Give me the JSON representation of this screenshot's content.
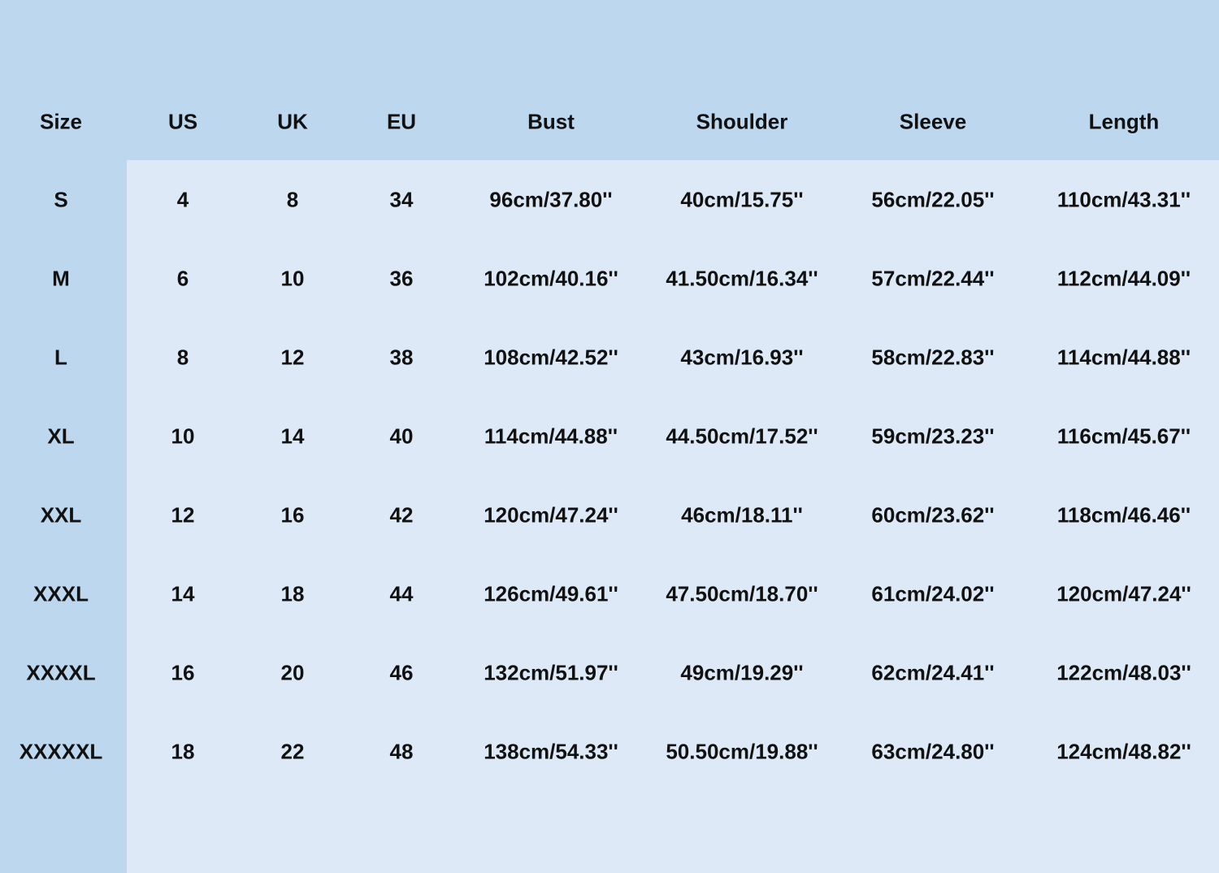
{
  "table": {
    "headers": [
      "Size",
      "US",
      "UK",
      "EU",
      "Bust",
      "Shoulder",
      "Sleeve",
      "Length"
    ],
    "rows": [
      [
        "S",
        "4",
        "8",
        "34",
        "96cm/37.80''",
        "40cm/15.75''",
        "56cm/22.05''",
        "110cm/43.31''"
      ],
      [
        "M",
        "6",
        "10",
        "36",
        "102cm/40.16''",
        "41.50cm/16.34''",
        "57cm/22.44''",
        "112cm/44.09''"
      ],
      [
        "L",
        "8",
        "12",
        "38",
        "108cm/42.52''",
        "43cm/16.93''",
        "58cm/22.83''",
        "114cm/44.88''"
      ],
      [
        "XL",
        "10",
        "14",
        "40",
        "114cm/44.88''",
        "44.50cm/17.52''",
        "59cm/23.23''",
        "116cm/45.67''"
      ],
      [
        "XXL",
        "12",
        "16",
        "42",
        "120cm/47.24''",
        "46cm/18.11''",
        "60cm/23.62''",
        "118cm/46.46''"
      ],
      [
        "XXXL",
        "14",
        "18",
        "44",
        "126cm/49.61''",
        "47.50cm/18.70''",
        "61cm/24.02''",
        "120cm/47.24''"
      ],
      [
        "XXXXL",
        "16",
        "20",
        "46",
        "132cm/51.97''",
        "49cm/19.29''",
        "62cm/24.41''",
        "122cm/48.03''"
      ],
      [
        "XXXXXL",
        "18",
        "22",
        "48",
        "138cm/54.33''",
        "50.50cm/19.88''",
        "63cm/24.80''",
        "124cm/48.82''"
      ]
    ]
  },
  "colors": {
    "header_background": "#bdd7ee",
    "body_background": "#dde9f6",
    "text": "#111111"
  }
}
